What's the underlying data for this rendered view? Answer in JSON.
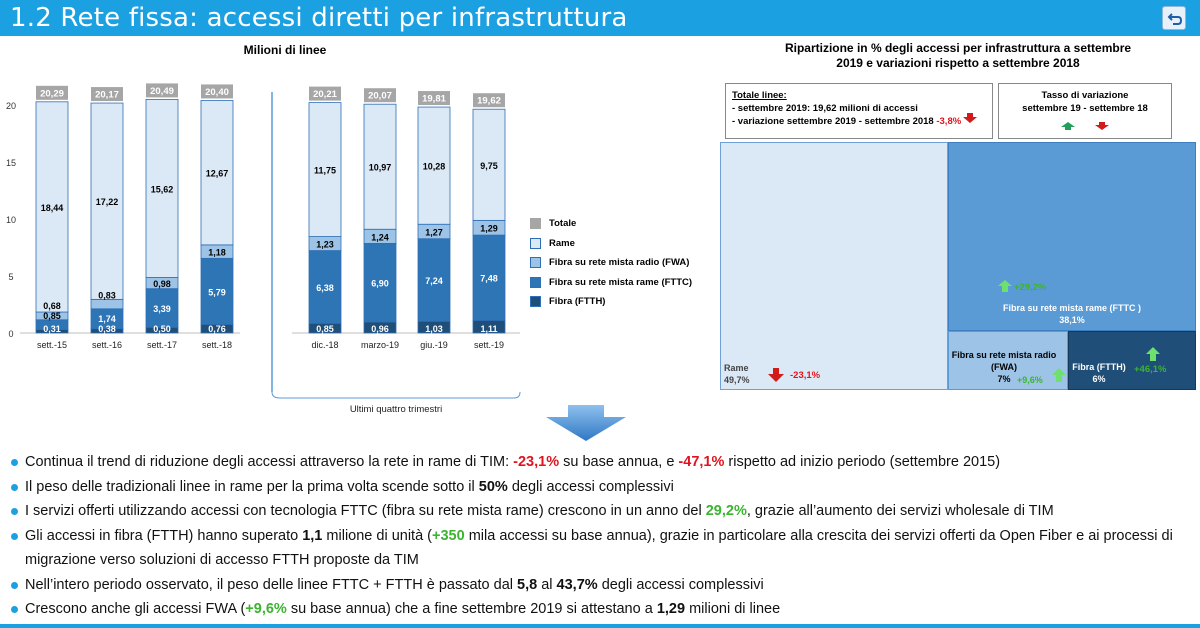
{
  "header": {
    "title": "1.2 Rete fissa: accessi diretti per infrastruttura"
  },
  "left_title": "Milioni di linee",
  "right_title": [
    "Ripartizione in % degli accessi per infrastruttura a settembre",
    "2019 e variazioni rispetto a settembre 2018"
  ],
  "quarters_label": "Ultimi quattro trimestri",
  "colors": {
    "totale": "#a6a6a6",
    "rame": "#dbe8f6",
    "fwa": "#9dc3e6",
    "fttc": "#2e75b6",
    "ftth": "#1f4e79",
    "accent": "#1ba1e2"
  },
  "chart_data": [
    {
      "type": "bar",
      "stacked": true,
      "title": "Milioni di linee",
      "categories": [
        "sett.-15",
        "sett.-16",
        "sett.-17",
        "sett.-18",
        "dic.-18",
        "marzo-19",
        "giu.-19",
        "sett.-19"
      ],
      "series": [
        {
          "name": "Fibra (FTTH)",
          "values": [
            0.31,
            0.38,
            0.5,
            0.76,
            0.85,
            0.96,
            1.03,
            1.11
          ]
        },
        {
          "name": "Fibra su rete mista rame (FTTC)",
          "values": [
            0.85,
            1.74,
            3.39,
            5.79,
            6.38,
            6.9,
            7.24,
            7.48
          ]
        },
        {
          "name": "Fibra su rete mista radio (FWA)",
          "values": [
            0.68,
            0.83,
            0.98,
            1.18,
            1.23,
            1.24,
            1.27,
            1.29
          ]
        },
        {
          "name": "Rame",
          "values": [
            18.44,
            17.22,
            15.62,
            12.67,
            11.75,
            10.97,
            10.28,
            9.75
          ]
        }
      ],
      "totals": [
        "20,29",
        "20,17",
        "20,49",
        "20,40",
        "20,21",
        "20,07",
        "19,81",
        "19,62"
      ],
      "value_labels": {
        "Fibra (FTTH)": [
          "0,31",
          "0,38",
          "0,50",
          "0,76",
          "0,85",
          "0,96",
          "1,03",
          "1,11"
        ],
        "Fibra su rete mista rame (FTTC)": [
          "0,85",
          "1,74",
          "3,39",
          "5,79",
          "6,38",
          "6,90",
          "7,24",
          "7,48"
        ],
        "Fibra su rete mista radio (FWA)": [
          "0,68",
          "0,83",
          "0,98",
          "1,18",
          "1,23",
          "1,24",
          "1,27",
          "1,29"
        ],
        "Rame": [
          "18,44",
          "17,22",
          "15,62",
          "12,67",
          "11,75",
          "10,97",
          "10,28",
          "9,75"
        ]
      },
      "legend": [
        "Totale",
        "Rame",
        "Fibra su rete mista radio (FWA)",
        "Fibra su rete mista rame (FTTC)",
        "Fibra (FTTH)"
      ],
      "ylim": [
        0,
        20
      ],
      "yticks": [
        0,
        5,
        10,
        15,
        20
      ],
      "grid": false
    },
    {
      "type": "treemap",
      "title": "Ripartizione in % degli accessi per infrastruttura a settembre 2019 e variazioni rispetto a settembre 2018",
      "tiles": [
        {
          "name": "Rame",
          "share": 49.7,
          "share_label": "49,7%",
          "change": "-23,1%",
          "direction": "down"
        },
        {
          "name": "Fibra su rete mista rame (FTTC )",
          "share": 38.1,
          "share_label": "38,1%",
          "change": "+29,2%",
          "direction": "up"
        },
        {
          "name": "Fibra su rete mista radio (FWA)",
          "share": 7,
          "share_label": "7%",
          "change": "+9,6%",
          "direction": "up"
        },
        {
          "name": "Fibra (FTTH)",
          "share": 6,
          "share_label": "6%",
          "change": "+46,1%",
          "direction": "up"
        }
      ]
    }
  ],
  "totale_box": {
    "heading": "Totale linee:",
    "line1": "- settembre 2019: 19,62 milioni di accessi",
    "line2": "- variazione  settembre 2019 - settembre 2018",
    "change": "-3,8%"
  },
  "tasso_box": {
    "line1": "Tasso  di variazione",
    "line2": "settembre 19 - settembre 18"
  },
  "bullets": [
    [
      {
        "t": "Continua il trend di riduzione degli accessi attraverso la rete in rame di TIM: "
      },
      {
        "t": "-23,1%",
        "c": "red"
      },
      {
        "t": " su base annua, e "
      },
      {
        "t": "-47,1%",
        "c": "red"
      },
      {
        "t": " rispetto ad inizio periodo (settembre 2015)"
      }
    ],
    [
      {
        "t": "Il peso delle tradizionali linee in rame per la prima volta scende sotto il "
      },
      {
        "t": "50%",
        "c": "bold"
      },
      {
        "t": " degli accessi complessivi"
      }
    ],
    [
      {
        "t": "I servizi offerti utilizzando accessi con tecnologia FTTC (fibra su rete mista rame) crescono in un anno del "
      },
      {
        "t": "29,2%",
        "c": "green"
      },
      {
        "t": ", grazie all’aumento dei servizi wholesale di TIM"
      }
    ],
    [
      {
        "t": "Gli accessi in fibra (FTTH) hanno superato "
      },
      {
        "t": "1,1",
        "c": "bold"
      },
      {
        "t": " milione di unità ("
      },
      {
        "t": "+350",
        "c": "green"
      },
      {
        "t": " mila accessi su base annua), grazie in particolare alla crescita dei servizi offerti da Open Fiber e ai processi di migrazione verso soluzioni di accesso FTTH proposte da TIM"
      }
    ],
    [
      {
        "t": "Nell’intero periodo osservato, il peso delle linee FTTC + FTTH è passato dal "
      },
      {
        "t": "5,8",
        "c": "bold"
      },
      {
        "t": " al "
      },
      {
        "t": "43,7%",
        "c": "bold"
      },
      {
        "t": " degli accessi complessivi"
      }
    ],
    [
      {
        "t": "Crescono anche gli accessi FWA ("
      },
      {
        "t": "+9,6%",
        "c": "green"
      },
      {
        "t": " su base annua) che a fine settembre 2019 si attestano a "
      },
      {
        "t": "1,29",
        "c": "bold"
      },
      {
        "t": " milioni di linee"
      }
    ]
  ]
}
